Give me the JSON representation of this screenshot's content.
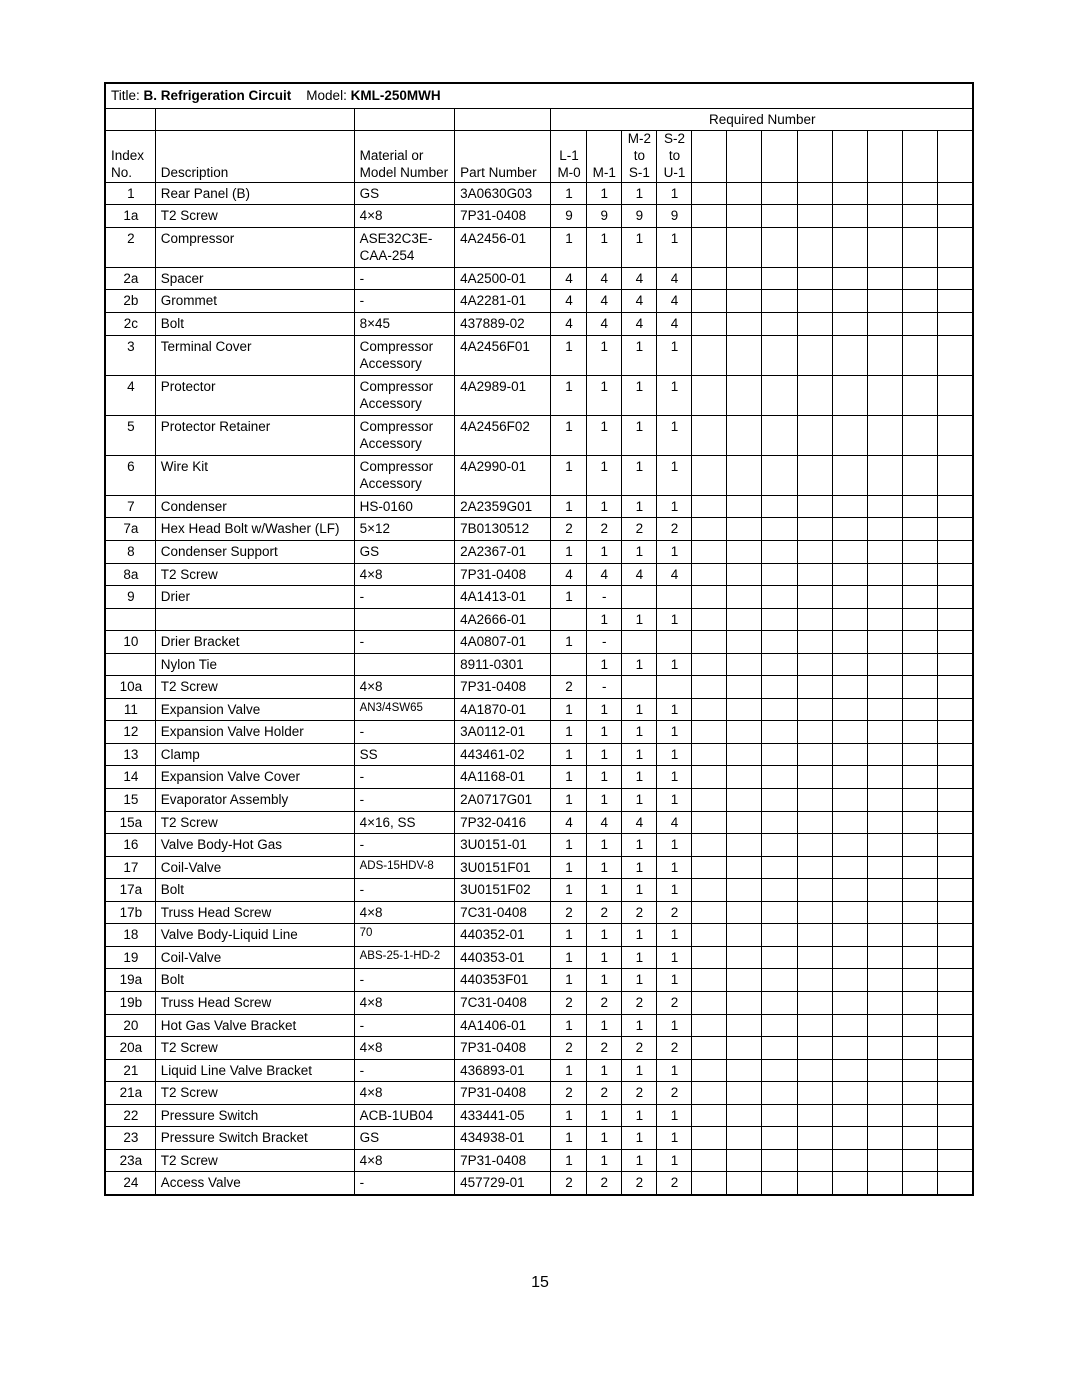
{
  "page_number": "15",
  "title": {
    "title_label": "Title: ",
    "title_value": "B. Refrigeration Circuit",
    "model_label": "Model: ",
    "model_value": "KML-250MWH"
  },
  "header": {
    "required_number": "Required Number",
    "index_no_l1": "Index",
    "index_no_l2": "No.",
    "description": "Description",
    "material_l1": "Material or",
    "material_l2": "Model Number",
    "part_number": "Part Number",
    "q1_l1": "",
    "q1_l2": "L-1",
    "q1_l3": "M-0",
    "q2_l1": "",
    "q2_l2": "",
    "q2_l3": "M-1",
    "q3_l1": "M-2",
    "q3_l2": "to",
    "q3_l3": "S-1",
    "q4_l1": "S-2",
    "q4_l2": "to",
    "q4_l3": "U-1"
  },
  "rows": [
    {
      "idx": "1",
      "desc": "Rear Panel (B)",
      "mat": "GS",
      "mat_small": false,
      "pn": "3A0630G03",
      "q": [
        "1",
        "1",
        "1",
        "1"
      ]
    },
    {
      "idx": "1a",
      "desc": "T2 Screw",
      "mat": "4×8",
      "mat_small": false,
      "pn": "7P31-0408",
      "q": [
        "9",
        "9",
        "9",
        "9"
      ]
    },
    {
      "idx": "2",
      "desc": "Compressor",
      "mat": "ASE32C3E-\nCAA-254",
      "mat_small": false,
      "pn": "4A2456-01",
      "q": [
        "1",
        "1",
        "1",
        "1"
      ]
    },
    {
      "idx": "2a",
      "desc": "Spacer",
      "mat": "-",
      "mat_small": false,
      "pn": "4A2500-01",
      "q": [
        "4",
        "4",
        "4",
        "4"
      ]
    },
    {
      "idx": "2b",
      "desc": "Grommet",
      "mat": "-",
      "mat_small": false,
      "pn": "4A2281-01",
      "q": [
        "4",
        "4",
        "4",
        "4"
      ]
    },
    {
      "idx": "2c",
      "desc": "Bolt",
      "mat": "8×45",
      "mat_small": false,
      "pn": "437889-02",
      "q": [
        "4",
        "4",
        "4",
        "4"
      ]
    },
    {
      "idx": "3",
      "desc": "Terminal Cover",
      "mat": "Compressor\nAccessory",
      "mat_small": false,
      "pn": "4A2456F01",
      "q": [
        "1",
        "1",
        "1",
        "1"
      ]
    },
    {
      "idx": "4",
      "desc": "Protector",
      "mat": "Compressor\nAccessory",
      "mat_small": false,
      "pn": "4A2989-01",
      "q": [
        "1",
        "1",
        "1",
        "1"
      ]
    },
    {
      "idx": "5",
      "desc": "Protector Retainer",
      "mat": "Compressor\nAccessory",
      "mat_small": false,
      "pn": "4A2456F02",
      "q": [
        "1",
        "1",
        "1",
        "1"
      ]
    },
    {
      "idx": "6",
      "desc": "Wire Kit",
      "mat": "Compressor\nAccessory",
      "mat_small": false,
      "pn": "4A2990-01",
      "q": [
        "1",
        "1",
        "1",
        "1"
      ]
    },
    {
      "idx": "7",
      "desc": "Condenser",
      "mat": "HS-0160",
      "mat_small": false,
      "pn": "2A2359G01",
      "q": [
        "1",
        "1",
        "1",
        "1"
      ]
    },
    {
      "idx": "7a",
      "desc": "Hex Head Bolt w/Washer (LF)",
      "mat": "5×12",
      "mat_small": false,
      "pn": "7B0130512",
      "q": [
        "2",
        "2",
        "2",
        "2"
      ]
    },
    {
      "idx": "8",
      "desc": "Condenser Support",
      "mat": "GS",
      "mat_small": false,
      "pn": "2A2367-01",
      "q": [
        "1",
        "1",
        "1",
        "1"
      ]
    },
    {
      "idx": "8a",
      "desc": "T2 Screw",
      "mat": "4×8",
      "mat_small": false,
      "pn": "7P31-0408",
      "q": [
        "4",
        "4",
        "4",
        "4"
      ]
    },
    {
      "idx": "9",
      "desc": "Drier",
      "mat": "-",
      "mat_small": false,
      "pn": "4A1413-01",
      "q": [
        "1",
        "-",
        "",
        ""
      ]
    },
    {
      "idx": "",
      "desc": "",
      "mat": "",
      "mat_small": false,
      "pn": "4A2666-01",
      "q": [
        "",
        "1",
        "1",
        "1"
      ]
    },
    {
      "idx": "10",
      "desc": "Drier Bracket",
      "mat": "-",
      "mat_small": false,
      "pn": "4A0807-01",
      "q": [
        "1",
        "-",
        "",
        ""
      ]
    },
    {
      "idx": "",
      "desc": "Nylon Tie",
      "mat": "",
      "mat_small": false,
      "pn": "8911-0301",
      "q": [
        "",
        "1",
        "1",
        "1"
      ]
    },
    {
      "idx": "10a",
      "desc": "T2 Screw",
      "mat": "4×8",
      "mat_small": false,
      "pn": "7P31-0408",
      "q": [
        "2",
        "-",
        "",
        ""
      ]
    },
    {
      "idx": "11",
      "desc": "Expansion Valve",
      "mat": "AN3/4SW65",
      "mat_small": true,
      "pn": "4A1870-01",
      "q": [
        "1",
        "1",
        "1",
        "1"
      ]
    },
    {
      "idx": "12",
      "desc": "Expansion Valve Holder",
      "mat": "-",
      "mat_small": false,
      "pn": "3A0112-01",
      "q": [
        "1",
        "1",
        "1",
        "1"
      ]
    },
    {
      "idx": "13",
      "desc": "Clamp",
      "mat": "SS",
      "mat_small": false,
      "pn": "443461-02",
      "q": [
        "1",
        "1",
        "1",
        "1"
      ]
    },
    {
      "idx": "14",
      "desc": "Expansion Valve Cover",
      "mat": "-",
      "mat_small": false,
      "pn": "4A1168-01",
      "q": [
        "1",
        "1",
        "1",
        "1"
      ]
    },
    {
      "idx": "15",
      "desc": "Evaporator Assembly",
      "mat": "-",
      "mat_small": false,
      "pn": "2A0717G01",
      "q": [
        "1",
        "1",
        "1",
        "1"
      ]
    },
    {
      "idx": "15a",
      "desc": "T2 Screw",
      "mat": "4×16, SS",
      "mat_small": false,
      "pn": "7P32-0416",
      "q": [
        "4",
        "4",
        "4",
        "4"
      ]
    },
    {
      "idx": "16",
      "desc": "Valve Body-Hot Gas",
      "mat": "-",
      "mat_small": false,
      "pn": "3U0151-01",
      "q": [
        "1",
        "1",
        "1",
        "1"
      ]
    },
    {
      "idx": "17",
      "desc": "Coil-Valve",
      "mat": "ADS-15HDV-8",
      "mat_small": true,
      "pn": "3U0151F01",
      "q": [
        "1",
        "1",
        "1",
        "1"
      ]
    },
    {
      "idx": "17a",
      "desc": "Bolt",
      "mat": "-",
      "mat_small": false,
      "pn": "3U0151F02",
      "q": [
        "1",
        "1",
        "1",
        "1"
      ]
    },
    {
      "idx": "17b",
      "desc": "Truss Head Screw",
      "mat": "4×8",
      "mat_small": false,
      "pn": "7C31-0408",
      "q": [
        "2",
        "2",
        "2",
        "2"
      ]
    },
    {
      "idx": "18",
      "desc": "Valve Body-Liquid Line",
      "mat": "70",
      "mat_small": true,
      "pn": "440352-01",
      "q": [
        "1",
        "1",
        "1",
        "1"
      ]
    },
    {
      "idx": "19",
      "desc": "Coil-Valve",
      "mat": "ABS-25-1-HD-2",
      "mat_small": true,
      "pn": "440353-01",
      "q": [
        "1",
        "1",
        "1",
        "1"
      ]
    },
    {
      "idx": "19a",
      "desc": "Bolt",
      "mat": "-",
      "mat_small": false,
      "pn": "440353F01",
      "q": [
        "1",
        "1",
        "1",
        "1"
      ]
    },
    {
      "idx": "19b",
      "desc": "Truss Head Screw",
      "mat": "4×8",
      "mat_small": false,
      "pn": "7C31-0408",
      "q": [
        "2",
        "2",
        "2",
        "2"
      ]
    },
    {
      "idx": "20",
      "desc": "Hot Gas Valve Bracket",
      "mat": "-",
      "mat_small": false,
      "pn": "4A1406-01",
      "q": [
        "1",
        "1",
        "1",
        "1"
      ]
    },
    {
      "idx": "20a",
      "desc": "T2 Screw",
      "mat": "4×8",
      "mat_small": false,
      "pn": "7P31-0408",
      "q": [
        "2",
        "2",
        "2",
        "2"
      ]
    },
    {
      "idx": "21",
      "desc": "Liquid Line Valve Bracket",
      "mat": "-",
      "mat_small": false,
      "pn": "436893-01",
      "q": [
        "1",
        "1",
        "1",
        "1"
      ]
    },
    {
      "idx": "21a",
      "desc": "T2 Screw",
      "mat": "4×8",
      "mat_small": false,
      "pn": "7P31-0408",
      "q": [
        "2",
        "2",
        "2",
        "2"
      ]
    },
    {
      "idx": "22",
      "desc": "Pressure Switch",
      "mat": "ACB-1UB04",
      "mat_small": false,
      "pn": "433441-05",
      "q": [
        "1",
        "1",
        "1",
        "1"
      ]
    },
    {
      "idx": "23",
      "desc": "Pressure Switch Bracket",
      "mat": "GS",
      "mat_small": false,
      "pn": "434938-01",
      "q": [
        "1",
        "1",
        "1",
        "1"
      ]
    },
    {
      "idx": "23a",
      "desc": "T2 Screw",
      "mat": "4×8",
      "mat_small": false,
      "pn": "7P31-0408",
      "q": [
        "1",
        "1",
        "1",
        "1"
      ]
    },
    {
      "idx": "24",
      "desc": "Access Valve",
      "mat": "-",
      "mat_small": false,
      "pn": "457729-01",
      "q": [
        "2",
        "2",
        "2",
        "2"
      ]
    }
  ]
}
